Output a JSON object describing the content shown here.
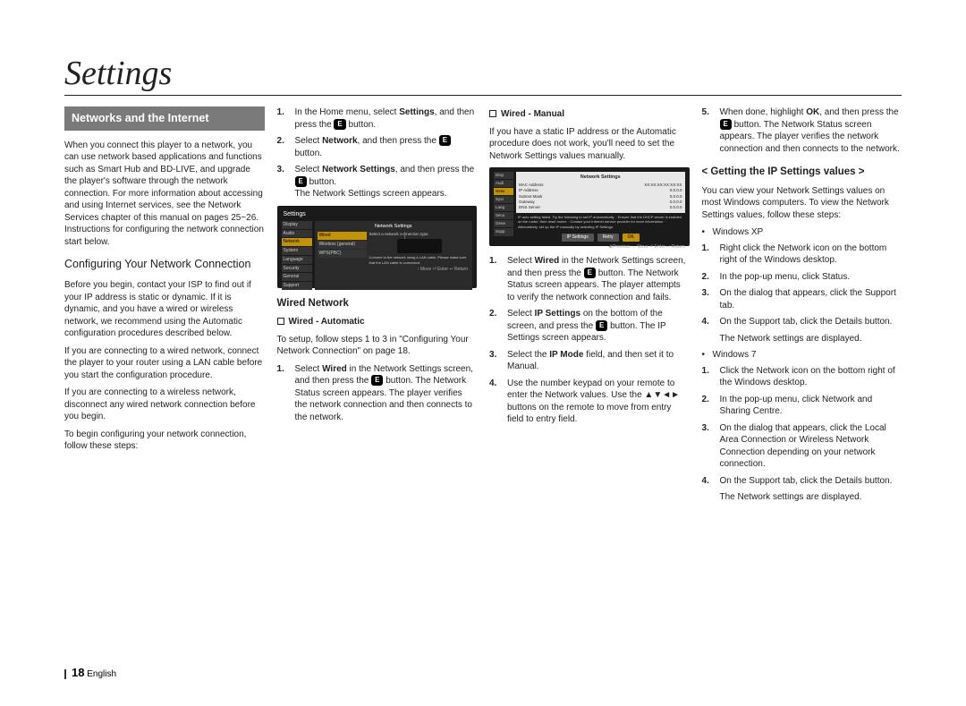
{
  "pageTitle": "Settings",
  "pageNumber": "18",
  "pageLang": "English",
  "enterIcon": "E",
  "col1": {
    "sectionHeader": "Networks and the Internet",
    "intro": "When you connect this player to a network, you can use network based applications and functions such as Smart Hub and BD-LIVE, and upgrade the player's software through the network connection. For more information about accessing and using Internet services, see the Network Services chapter of this manual on pages 25~26. Instructions for configuring the network connection start below.",
    "subhead": "Configuring Your Network Connection",
    "p1": "Before you begin, contact your ISP to find out if your IP address is static or dynamic. If it is dynamic, and you have a wired or wireless network, we recommend using the Automatic configuration procedures described below.",
    "p2": "If you are connecting to a wired network, connect the player to your router using a LAN cable before you start the configuration procedure.",
    "p3": "If you are connecting to a wireless network, disconnect any wired network connection before you begin.",
    "p4": "To begin configuring your network connection, follow these steps:"
  },
  "col2": {
    "step1a": "In the Home menu, select ",
    "step1b": "Settings",
    "step1c": ", and then press the ",
    "step1d": " button.",
    "step2a": "Select ",
    "step2b": "Network",
    "step2c": ", and then press the ",
    "step2d": " button.",
    "step3a": "Select ",
    "step3b": "Network Settings",
    "step3c": ", and then press the ",
    "step3d": " button.",
    "step3e": "The Network Settings screen appears.",
    "screenshot1": {
      "title": "Settings",
      "panelTitle": "Network Settings",
      "sidebar": [
        "Display",
        "Audio",
        "Network",
        "System",
        "Language",
        "Security",
        "General",
        "Support"
      ],
      "activeIndex": 2,
      "subText": "Select a network connection type.",
      "options": [
        "Wired",
        "Wireless (general)",
        "WPS(PBC)"
      ],
      "selectedIndex": 0,
      "desc": "Connect to the network using a LAN cable. Please make sure that the LAN cable is connected.",
      "footer": "↕ Move   ⏎ Enter   ↩ Return"
    },
    "wiredHead": "Wired Network",
    "autoHead": "Wired - Automatic",
    "autoIntro": "To setup, follow steps 1 to 3 in \"Configuring Your Network Connection\" on page 18.",
    "autoStep1a": "Select ",
    "autoStep1b": "Wired",
    "autoStep1c": " in the Network Settings screen, and then press the ",
    "autoStep1d": " button. The Network Status screen appears. The player verifies the network connection and then connects to the network."
  },
  "col3": {
    "manualHead": "Wired - Manual",
    "manualIntro": "If you have a static IP address or the Automatic procedure does not work, you'll need to set the Network Settings values manually.",
    "screenshot2": {
      "title": "Settings",
      "panelTitle": "Network Settings",
      "sidebar": [
        "Disp",
        "Audi",
        "Netw",
        "Syst",
        "Lang",
        "Secu",
        "Gene",
        "Supp"
      ],
      "rows": [
        [
          "MAC Address",
          "XX:XX:XX:XX:XX:XX"
        ],
        [
          "IP Address",
          "0.0.0.0"
        ],
        [
          "Subnet Mask",
          "0.0.0.0"
        ],
        [
          "Gateway",
          "0.0.0.0"
        ],
        [
          "DNS Server",
          "0.0.0.0"
        ]
      ],
      "msg": "IP auto setting failed. Try the following to set IP automatically. · Ensure that the DHCP server is enabled on the router, then reset router. · Contact your Internet service provider for more information. · Alternatively, set up the IP manually by selecting IP Settings.",
      "buttons": [
        "IP Settings",
        "Retry",
        "OK"
      ],
      "footer": "◀ Previous   ↔ Move   ⏎ Enter   ↩ Return"
    },
    "step1a": "Select ",
    "step1b": "Wired",
    "step1c": " in the Network Settings screen, and then press the ",
    "step1d": " button. The Network Status screen appears. The player attempts to verify the network connection and fails.",
    "step2a": "Select ",
    "step2b": "IP Settings",
    "step2c": " on the bottom of the screen, and press the ",
    "step2d": " button. The IP Settings screen appears.",
    "step3a": "Select the ",
    "step3b": "IP Mode",
    "step3c": " field, and then set it to Manual.",
    "step4a": "Use the number keypad on your remote to enter the Network values. Use the ",
    "step4arrows": "▲▼◄►",
    "step4b": " buttons on the remote to move from entry field to entry field."
  },
  "col4": {
    "step5a": "When done, highlight ",
    "step5b": "OK",
    "step5c": ", and then press the ",
    "step5d": " button. The Network Status screen appears. The player verifies the network connection and then connects to the network.",
    "angleHead": "< Getting the IP Settings values >",
    "intro": "You can view your Network Settings values on most Windows computers. To view the Network Settings values, follow these steps:",
    "xp": "Windows XP",
    "xpSteps": [
      "Right click the Network icon on the bottom right of the Windows desktop.",
      "In the pop-up menu, click Status.",
      "On the dialog that appears, click the Support tab.",
      "On the Support tab, click the Details button."
    ],
    "xpAfter": "The Network settings are displayed.",
    "win7": "Windows 7",
    "win7Steps": [
      "Click the Network icon on the bottom right of the Windows desktop.",
      "In the pop-up menu, click Network and Sharing Centre.",
      "On the dialog that appears, click the Local Area Connection or Wireless Network Connection depending on your network connection.",
      "On the Support tab, click the Details button."
    ],
    "win7After": "The Network settings are displayed."
  }
}
